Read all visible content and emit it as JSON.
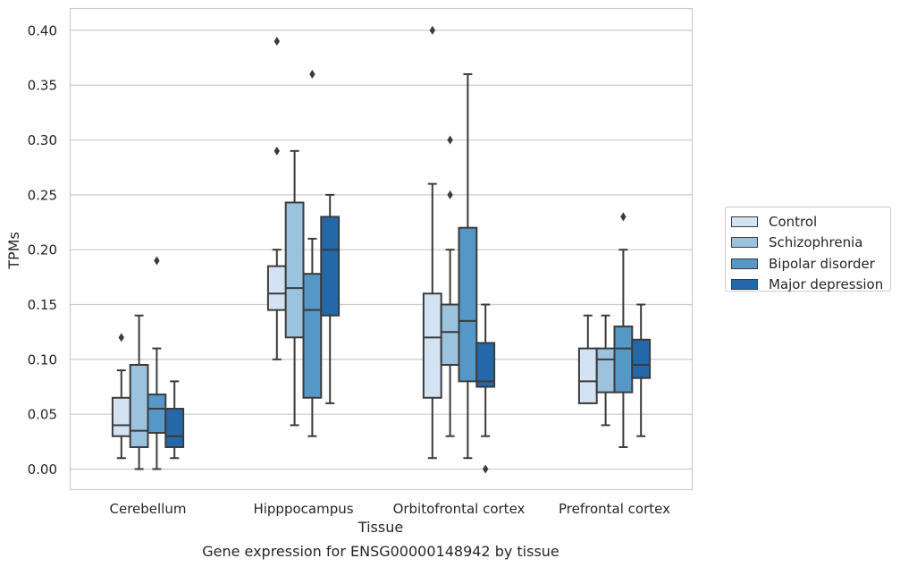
{
  "chart_data": {
    "type": "box",
    "title": "Gene expression for ENSG00000148942 by tissue",
    "xlabel": "Tissue",
    "ylabel": "TPMs",
    "ylim": [
      -0.02,
      0.42
    ],
    "yticks": [
      "0.00",
      "0.05",
      "0.10",
      "0.15",
      "0.20",
      "0.25",
      "0.30",
      "0.35",
      "0.40"
    ],
    "ytick_values": [
      0,
      0.05,
      0.1,
      0.15,
      0.2,
      0.25,
      0.3,
      0.35,
      0.4
    ],
    "grid": "horizontal",
    "legend_placement": "right",
    "categories": [
      "Cerebellum",
      "Hipppocampus",
      "Orbitofrontal cortex",
      "Prefrontal cortex"
    ],
    "series": [
      {
        "name": "Control",
        "color": "#d4e3f4",
        "boxes": [
          {
            "whislo": 0.01,
            "q1": 0.03,
            "med": 0.04,
            "q3": 0.065,
            "whishi": 0.09,
            "fliers": [
              0.12
            ]
          },
          {
            "whislo": 0.1,
            "q1": 0.145,
            "med": 0.16,
            "q3": 0.185,
            "whishi": 0.2,
            "fliers": [
              0.29,
              0.39
            ]
          },
          {
            "whislo": 0.01,
            "q1": 0.065,
            "med": 0.12,
            "q3": 0.16,
            "whishi": 0.26,
            "fliers": [
              0.4
            ]
          },
          {
            "whislo": 0.06,
            "q1": 0.06,
            "med": 0.08,
            "q3": 0.11,
            "whishi": 0.14,
            "fliers": []
          }
        ]
      },
      {
        "name": "Schizophrenia",
        "color": "#9bc3dd",
        "boxes": [
          {
            "whislo": 0.0,
            "q1": 0.02,
            "med": 0.035,
            "q3": 0.095,
            "whishi": 0.14,
            "fliers": []
          },
          {
            "whislo": 0.04,
            "q1": 0.12,
            "med": 0.165,
            "q3": 0.243,
            "whishi": 0.29,
            "fliers": []
          },
          {
            "whislo": 0.03,
            "q1": 0.095,
            "med": 0.125,
            "q3": 0.15,
            "whishi": 0.2,
            "fliers": [
              0.25,
              0.3
            ]
          },
          {
            "whislo": 0.04,
            "q1": 0.07,
            "med": 0.1,
            "q3": 0.11,
            "whishi": 0.14,
            "fliers": []
          }
        ]
      },
      {
        "name": "Bipolar disorder",
        "color": "#5597c6",
        "boxes": [
          {
            "whislo": 0.0,
            "q1": 0.033,
            "med": 0.055,
            "q3": 0.068,
            "whishi": 0.11,
            "fliers": [
              0.19
            ]
          },
          {
            "whislo": 0.03,
            "q1": 0.065,
            "med": 0.145,
            "q3": 0.178,
            "whishi": 0.21,
            "fliers": [
              0.36
            ]
          },
          {
            "whislo": 0.01,
            "q1": 0.08,
            "med": 0.135,
            "q3": 0.22,
            "whishi": 0.36,
            "fliers": []
          },
          {
            "whislo": 0.02,
            "q1": 0.07,
            "med": 0.11,
            "q3": 0.13,
            "whishi": 0.2,
            "fliers": [
              0.23
            ]
          }
        ]
      },
      {
        "name": "Major depression",
        "color": "#2468a9",
        "boxes": [
          {
            "whislo": 0.01,
            "q1": 0.02,
            "med": 0.03,
            "q3": 0.055,
            "whishi": 0.08,
            "fliers": []
          },
          {
            "whislo": 0.06,
            "q1": 0.14,
            "med": 0.2,
            "q3": 0.23,
            "whishi": 0.25,
            "fliers": []
          },
          {
            "whislo": 0.03,
            "q1": 0.075,
            "med": 0.08,
            "q3": 0.115,
            "whishi": 0.15,
            "fliers": [
              0.0
            ]
          },
          {
            "whislo": 0.03,
            "q1": 0.083,
            "med": 0.095,
            "q3": 0.118,
            "whishi": 0.15,
            "fliers": []
          }
        ]
      }
    ]
  }
}
